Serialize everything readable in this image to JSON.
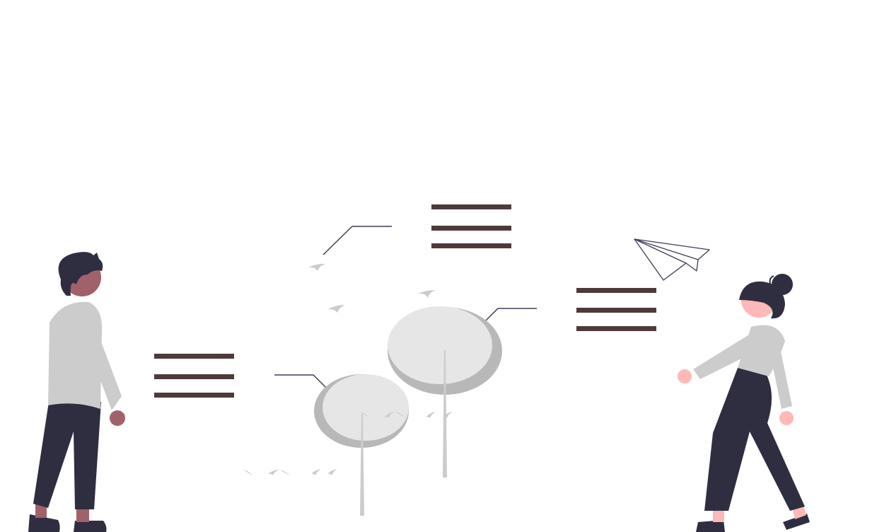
{
  "illustration": {
    "icons": [
      "person-man-icon",
      "person-woman-icon",
      "paper-plane-icon",
      "tree-icon",
      "bird-icon",
      "text-lines-icon",
      "leader-line-icon"
    ]
  },
  "colors": {
    "background": "#ffffff",
    "text_lines": "#4e3a3a",
    "leader_lines": "#3f3d56",
    "tree_light": "#e6e6e6",
    "tree_shadow": "#b8b8b8",
    "trunk": "#cccccc",
    "bird": "#cccccc",
    "shirt": "#cccccc",
    "pants": "#2f2e41",
    "hair": "#2f2e41",
    "skin_man": "#a0616a",
    "skin_woman": "#ffb8b8",
    "plane_stroke": "#3f3d56"
  }
}
